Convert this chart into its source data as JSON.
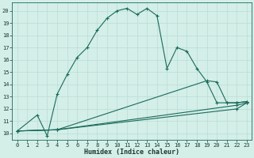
{
  "xlabel": "Humidex (Indice chaleur)",
  "xlim": [
    -0.5,
    23.5
  ],
  "ylim": [
    9.5,
    20.7
  ],
  "xticks": [
    0,
    1,
    2,
    3,
    4,
    5,
    6,
    7,
    8,
    9,
    10,
    11,
    12,
    13,
    14,
    15,
    16,
    17,
    18,
    19,
    20,
    21,
    22,
    23
  ],
  "yticks": [
    10,
    11,
    12,
    13,
    14,
    15,
    16,
    17,
    18,
    19,
    20
  ],
  "bg_color": "#d4eee8",
  "line_color": "#1a6b5a",
  "grid_color": "#b8ddd4",
  "series": [
    {
      "x": [
        0,
        2,
        3,
        4,
        5,
        6,
        7,
        8,
        9,
        10,
        11,
        12,
        13,
        14,
        15,
        16,
        17,
        18,
        19,
        20,
        21,
        22,
        23
      ],
      "y": [
        10.2,
        11.5,
        9.8,
        13.2,
        14.8,
        16.2,
        17.0,
        18.4,
        19.4,
        20.0,
        20.2,
        19.7,
        20.2,
        19.6,
        15.3,
        17.0,
        16.7,
        15.3,
        14.2,
        12.5,
        12.5,
        12.5,
        12.6
      ]
    },
    {
      "x": [
        0,
        4,
        19,
        20,
        21,
        22,
        23
      ],
      "y": [
        10.2,
        10.3,
        14.3,
        14.2,
        12.5,
        12.5,
        12.6
      ]
    },
    {
      "x": [
        0,
        4,
        22,
        23
      ],
      "y": [
        10.2,
        10.3,
        12.3,
        12.5
      ]
    },
    {
      "x": [
        0,
        4,
        22,
        23
      ],
      "y": [
        10.2,
        10.3,
        12.0,
        12.5
      ]
    }
  ]
}
